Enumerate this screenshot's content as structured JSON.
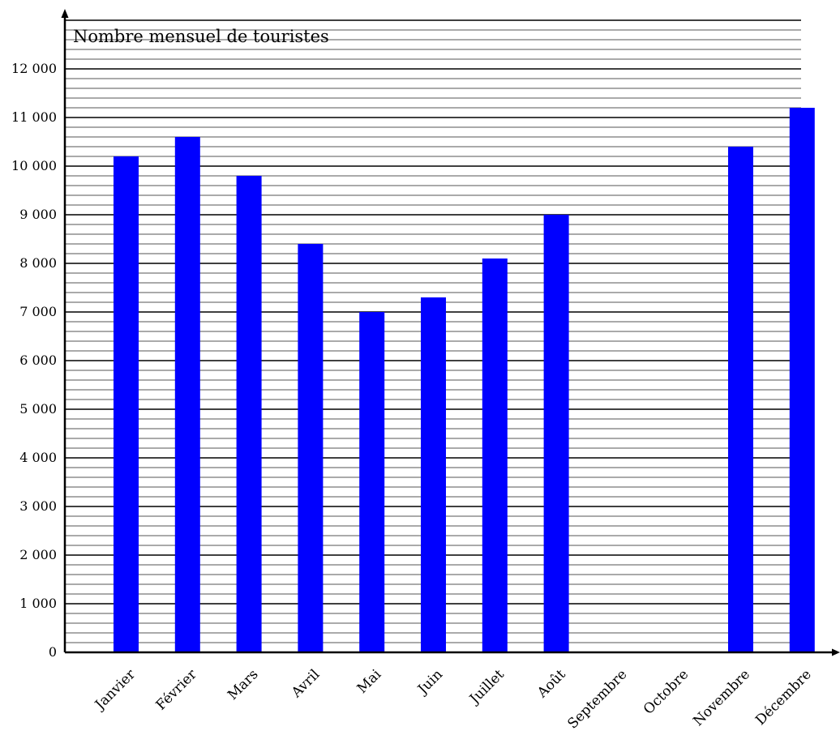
{
  "chart_data": {
    "type": "bar",
    "title": "Nombre mensuel de touristes",
    "xlabel": "",
    "ylabel": "Nombre mensuel de touristes",
    "categories": [
      "Janvier",
      "Février",
      "Mars",
      "Avril",
      "Mai",
      "Juin",
      "Juillet",
      "Août",
      "Septembre",
      "Octobre",
      "Novembre",
      "Décembre"
    ],
    "values": [
      10200,
      10600,
      9800,
      8400,
      7000,
      7300,
      8100,
      9000,
      null,
      null,
      10400,
      11200
    ],
    "ylim": [
      0,
      13000
    ],
    "yticks": [
      0,
      1000,
      2000,
      3000,
      4000,
      5000,
      6000,
      7000,
      8000,
      9000,
      10000,
      11000,
      12000
    ],
    "ytick_labels": [
      "0",
      "1 000",
      "2 000",
      "3 000",
      "4 000",
      "5 000",
      "6 000",
      "7 000",
      "8 000",
      "9 000",
      "10 000",
      "11 000",
      "12 000"
    ],
    "minor_grid_step": 200,
    "grid": true,
    "bar_color": "#0000ff"
  }
}
